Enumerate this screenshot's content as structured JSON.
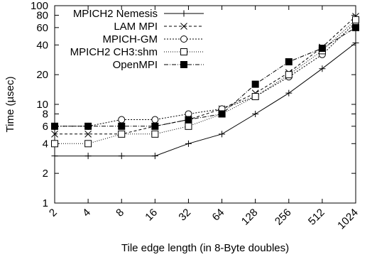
{
  "chart_data": {
    "type": "line",
    "title": "",
    "xlabel": "Tile edge length (in 8-Byte doubles)",
    "ylabel": "Time (µsec)",
    "x_scale": "log2",
    "y_scale": "log10",
    "x": [
      2,
      4,
      8,
      16,
      32,
      64,
      128,
      256,
      512,
      1024
    ],
    "x_tick_labels": [
      "2",
      "4",
      "8",
      "16",
      "32",
      "64",
      "128",
      "256",
      "512",
      "1024"
    ],
    "ylim": [
      1,
      100
    ],
    "y_ticks": [
      1,
      2,
      4,
      6,
      8,
      10,
      20,
      40,
      60,
      80,
      100
    ],
    "y_tick_labels": [
      "1",
      "2",
      "4",
      "6",
      "8",
      "10",
      "20",
      "40",
      "60",
      "80",
      "100"
    ],
    "grid": false,
    "legend_position": "top-left",
    "series": [
      {
        "name": "MPICH2 Nemesis",
        "marker": "plus",
        "dash": "",
        "values": [
          3,
          3,
          3,
          3,
          4,
          5,
          8,
          13,
          23,
          42
        ]
      },
      {
        "name": "LAM MPI",
        "marker": "cross",
        "dash": "4,3",
        "values": [
          5,
          5,
          5,
          6,
          7,
          9,
          13,
          21,
          38,
          78
        ]
      },
      {
        "name": "MPICH-GM",
        "marker": "circle-open",
        "dash": "2,2",
        "values": [
          6,
          6,
          7,
          7,
          8,
          9,
          12,
          19,
          32,
          68
        ]
      },
      {
        "name": "MPICH2 CH3:shm",
        "marker": "square-open",
        "dash": "1,2",
        "values": [
          4,
          4,
          5,
          5,
          6,
          8,
          12,
          20,
          35,
          72
        ]
      },
      {
        "name": "OpenMPI",
        "marker": "square-filled",
        "dash": "6,2,1,2",
        "values": [
          6,
          6,
          6,
          6,
          7,
          8,
          16,
          27,
          37,
          60
        ]
      }
    ]
  }
}
